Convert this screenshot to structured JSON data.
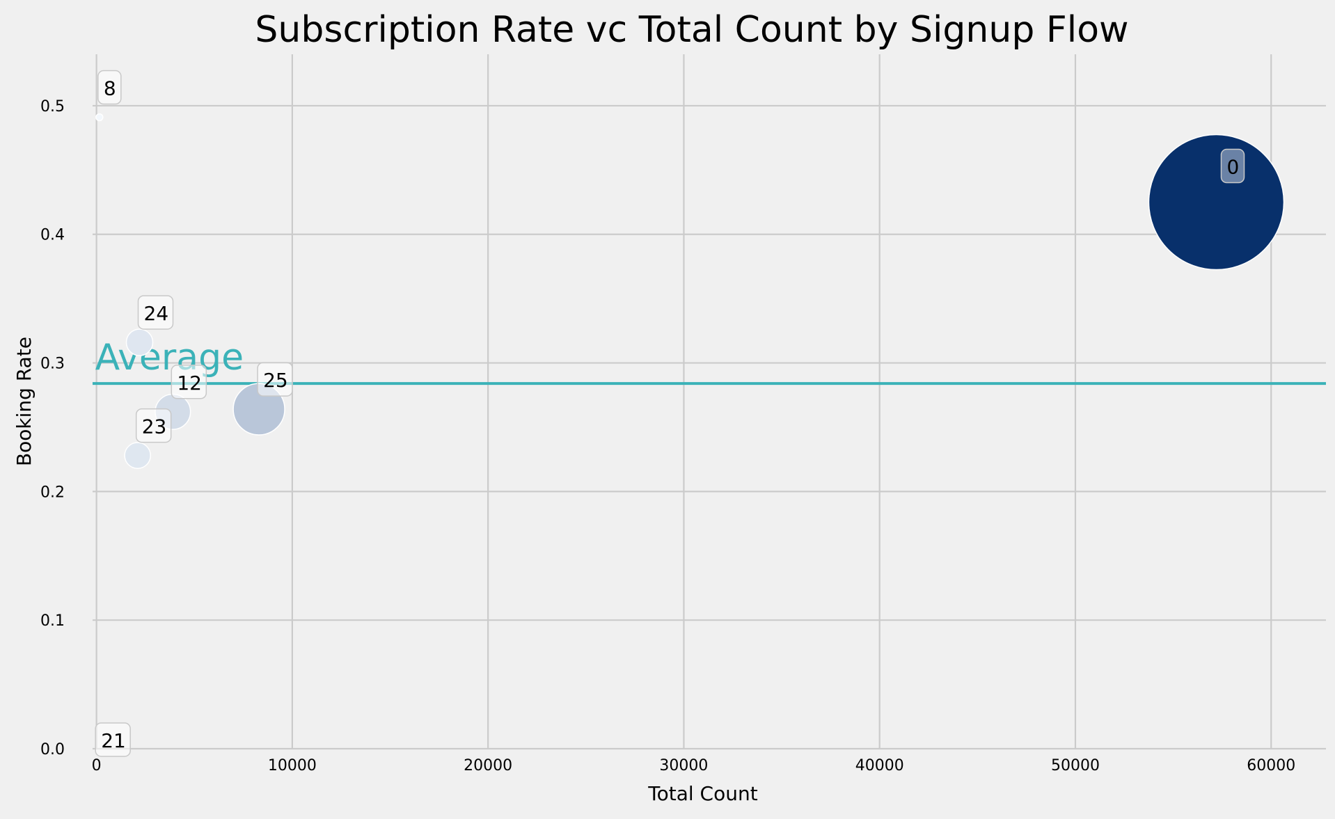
{
  "chart_data": {
    "type": "scatter",
    "title": "Subscription Rate vc Total Count by Signup Flow",
    "xlabel": "Total Count",
    "ylabel": "Booking Rate",
    "xlim": [
      -200,
      62800
    ],
    "ylim": [
      0.0,
      0.54
    ],
    "xticks": [
      0,
      10000,
      20000,
      30000,
      40000,
      50000,
      60000
    ],
    "yticks": [
      0.0,
      0.1,
      0.2,
      0.3,
      0.4,
      0.5
    ],
    "ytick_labels": [
      "0.0",
      "0.1",
      "0.2",
      "0.3",
      "0.4",
      "0.5"
    ],
    "grid": true,
    "points": [
      {
        "label": "0",
        "x": 57200,
        "y": 0.425,
        "size": 57200
      },
      {
        "label": "8",
        "x": 150,
        "y": 0.491,
        "size": 150
      },
      {
        "label": "24",
        "x": 2200,
        "y": 0.316,
        "size": 2200
      },
      {
        "label": "12",
        "x": 3900,
        "y": 0.262,
        "size": 3900
      },
      {
        "label": "25",
        "x": 8300,
        "y": 0.264,
        "size": 8300
      },
      {
        "label": "23",
        "x": 2100,
        "y": 0.228,
        "size": 2100
      },
      {
        "label": "21",
        "x": 20,
        "y": 0.0,
        "size": 20
      }
    ],
    "average": {
      "label": "Average",
      "y": 0.284
    },
    "colors": {
      "background": "#f0f0f0",
      "grid": "#cbcbcb",
      "average_line": "#3bb2b8",
      "colormap_low": "#f7fbff",
      "colormap_high": "#08306b"
    }
  }
}
